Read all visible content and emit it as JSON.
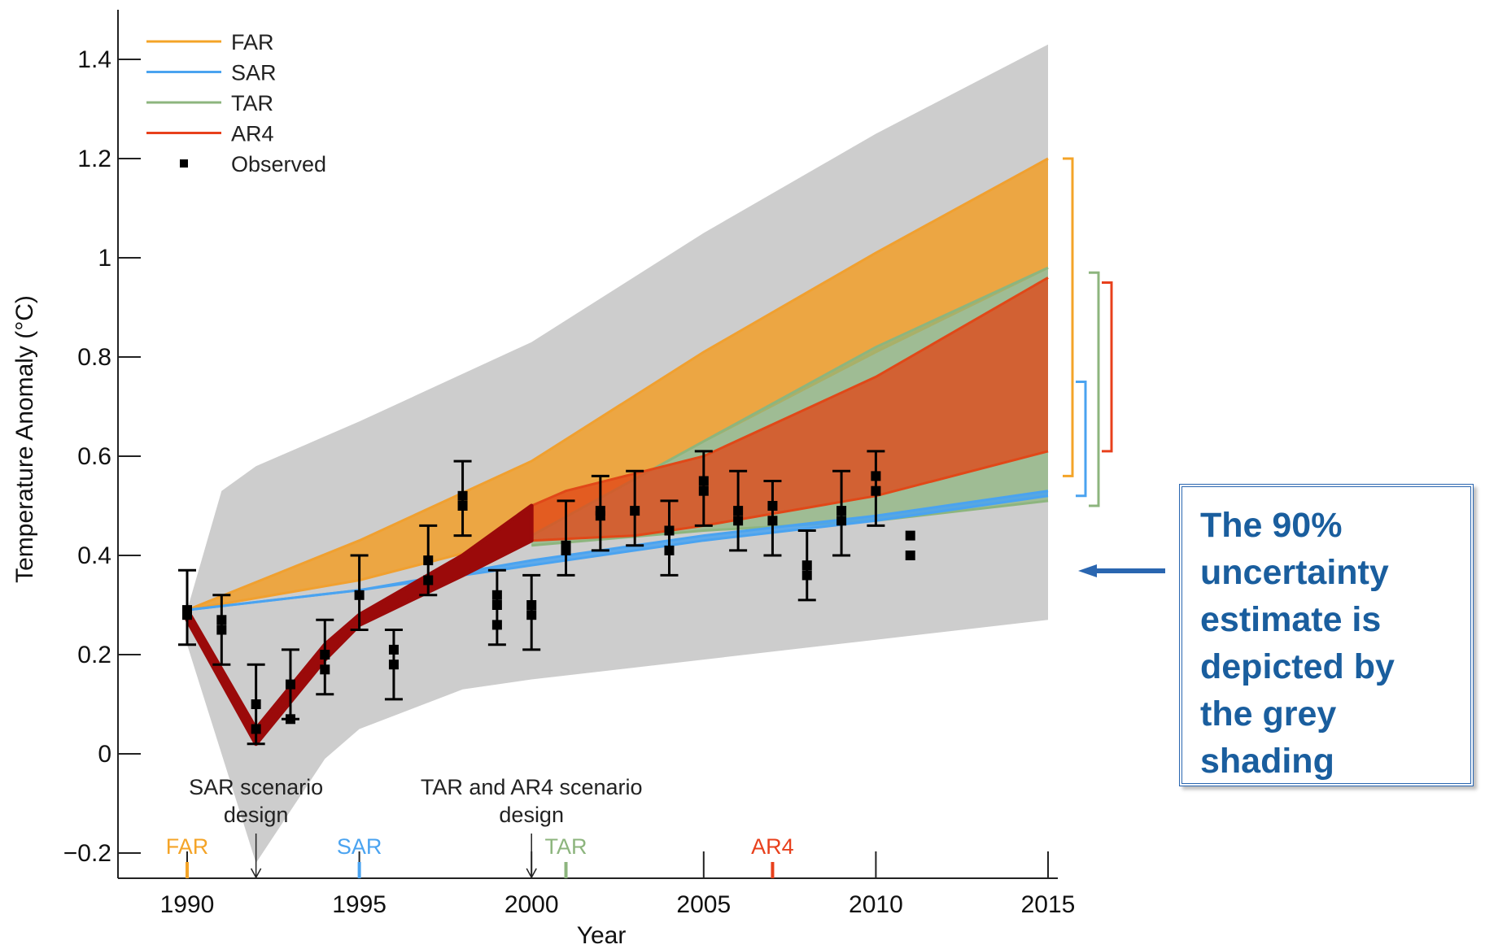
{
  "chart_data": {
    "type": "area",
    "xlabel": "Year",
    "ylabel": "Temperature Anomaly (°C)",
    "xlim": [
      1987.5,
      2015
    ],
    "ylim": [
      -0.25,
      1.5
    ],
    "x_ticks": [
      1990,
      1995,
      2000,
      2005,
      2010,
      2015
    ],
    "y_ticks": [
      -0.2,
      0,
      0.2,
      0.4,
      0.6,
      0.8,
      1,
      1.2,
      1.4
    ],
    "y_tick_labels": [
      "−0.2",
      "0",
      "0.2",
      "0.4",
      "0.6",
      "0.8",
      "1",
      "1.2",
      "1.4"
    ],
    "grid": false,
    "legend_position": "top-left",
    "legend": [
      {
        "name": "FAR",
        "color": "#f4a428",
        "kind": "line"
      },
      {
        "name": "SAR",
        "color": "#4aa3f0",
        "kind": "line"
      },
      {
        "name": "TAR",
        "color": "#8db57e",
        "kind": "line"
      },
      {
        "name": "AR4",
        "color": "#e8401c",
        "kind": "line"
      },
      {
        "name": "Observed",
        "color": "#000000",
        "kind": "marker"
      }
    ],
    "uncertainty_band": {
      "color": "#cdcdcd",
      "upper": [
        [
          1990,
          0.29
        ],
        [
          1991,
          0.53
        ],
        [
          1992,
          0.58
        ],
        [
          1995,
          0.67
        ],
        [
          2000,
          0.83
        ],
        [
          2005,
          1.05
        ],
        [
          2010,
          1.25
        ],
        [
          2015,
          1.43
        ]
      ],
      "lower": [
        [
          1990,
          0.22
        ],
        [
          1992,
          -0.22
        ],
        [
          1994,
          -0.01
        ],
        [
          1995,
          0.05
        ],
        [
          1998,
          0.13
        ],
        [
          2000,
          0.15
        ],
        [
          2005,
          0.19
        ],
        [
          2010,
          0.23
        ],
        [
          2015,
          0.27
        ]
      ]
    },
    "ranges": [
      {
        "name": "FAR",
        "color": "#f0a030",
        "upper": [
          [
            1990,
            0.29
          ],
          [
            1995,
            0.43
          ],
          [
            2000,
            0.59
          ],
          [
            2005,
            0.81
          ],
          [
            2010,
            1.01
          ],
          [
            2015,
            1.2
          ]
        ],
        "lower": [
          [
            1990,
            0.29
          ],
          [
            1995,
            0.35
          ],
          [
            2000,
            0.44
          ],
          [
            2005,
            0.63
          ],
          [
            2010,
            0.81
          ],
          [
            2015,
            0.98
          ]
        ]
      },
      {
        "name": "TAR",
        "color": "#8db57e",
        "upper": [
          [
            2000,
            0.44
          ],
          [
            2005,
            0.63
          ],
          [
            2010,
            0.82
          ],
          [
            2015,
            0.98
          ]
        ],
        "lower": [
          [
            2000,
            0.42
          ],
          [
            2005,
            0.45
          ],
          [
            2010,
            0.47
          ],
          [
            2015,
            0.51
          ]
        ]
      },
      {
        "name": "SAR",
        "color": "#4aa3f0",
        "upper": [
          [
            1990,
            0.29
          ],
          [
            1995,
            0.33
          ],
          [
            2000,
            0.39
          ],
          [
            2005,
            0.44
          ],
          [
            2010,
            0.48
          ],
          [
            2015,
            0.53
          ]
        ],
        "lower": [
          [
            1990,
            0.29
          ],
          [
            1995,
            0.33
          ],
          [
            2000,
            0.38
          ],
          [
            2005,
            0.43
          ],
          [
            2010,
            0.47
          ],
          [
            2015,
            0.52
          ]
        ]
      },
      {
        "name": "AR4",
        "color": "#e04818",
        "upper": [
          [
            2000,
            0.5
          ],
          [
            2001,
            0.53
          ],
          [
            2005,
            0.6
          ],
          [
            2010,
            0.76
          ],
          [
            2015,
            0.96
          ]
        ],
        "lower": [
          [
            2000,
            0.43
          ],
          [
            2003,
            0.44
          ],
          [
            2005,
            0.46
          ],
          [
            2010,
            0.52
          ],
          [
            2015,
            0.61
          ]
        ]
      }
    ],
    "ar4_historical": {
      "color": "#9b0a0a",
      "upper": [
        [
          1990,
          0.29
        ],
        [
          1992,
          0.05
        ],
        [
          1994,
          0.22
        ],
        [
          1995,
          0.28
        ],
        [
          1998,
          0.4
        ],
        [
          2000,
          0.5
        ]
      ],
      "lower": [
        [
          1990,
          0.27
        ],
        [
          1992,
          0.02
        ],
        [
          1994,
          0.19
        ],
        [
          1995,
          0.26
        ],
        [
          1998,
          0.36
        ],
        [
          2000,
          0.43
        ]
      ]
    },
    "observed": [
      {
        "x": 1990,
        "values": [
          0.29,
          0.28
        ],
        "low": 0.22,
        "high": 0.37
      },
      {
        "x": 1991,
        "values": [
          0.27,
          0.25
        ],
        "low": 0.18,
        "high": 0.32
      },
      {
        "x": 1992,
        "values": [
          0.1,
          0.05
        ],
        "low": 0.02,
        "high": 0.18
      },
      {
        "x": 1993,
        "values": [
          0.14,
          0.07
        ],
        "low": 0.07,
        "high": 0.21
      },
      {
        "x": 1994,
        "values": [
          0.2,
          0.17
        ],
        "low": 0.12,
        "high": 0.27
      },
      {
        "x": 1995,
        "values": [
          0.32
        ],
        "low": 0.25,
        "high": 0.4
      },
      {
        "x": 1996,
        "values": [
          0.21,
          0.18
        ],
        "low": 0.11,
        "high": 0.25
      },
      {
        "x": 1997,
        "values": [
          0.39,
          0.35
        ],
        "low": 0.32,
        "high": 0.46
      },
      {
        "x": 1998,
        "values": [
          0.52,
          0.5
        ],
        "low": 0.44,
        "high": 0.59
      },
      {
        "x": 1999,
        "values": [
          0.32,
          0.3,
          0.26
        ],
        "low": 0.22,
        "high": 0.37
      },
      {
        "x": 2000,
        "values": [
          0.3,
          0.28
        ],
        "low": 0.21,
        "high": 0.36
      },
      {
        "x": 2001,
        "values": [
          0.42,
          0.41
        ],
        "low": 0.36,
        "high": 0.51
      },
      {
        "x": 2002,
        "values": [
          0.49,
          0.48
        ],
        "low": 0.41,
        "high": 0.56
      },
      {
        "x": 2003,
        "values": [
          0.49
        ],
        "low": 0.42,
        "high": 0.57
      },
      {
        "x": 2004,
        "values": [
          0.45,
          0.41
        ],
        "low": 0.36,
        "high": 0.51
      },
      {
        "x": 2005,
        "values": [
          0.55,
          0.53
        ],
        "low": 0.46,
        "high": 0.61
      },
      {
        "x": 2006,
        "values": [
          0.49,
          0.47
        ],
        "low": 0.41,
        "high": 0.57
      },
      {
        "x": 2007,
        "values": [
          0.5,
          0.47
        ],
        "low": 0.4,
        "high": 0.55
      },
      {
        "x": 2008,
        "values": [
          0.38,
          0.36
        ],
        "low": 0.31,
        "high": 0.45
      },
      {
        "x": 2009,
        "values": [
          0.49,
          0.47
        ],
        "low": 0.4,
        "high": 0.57
      },
      {
        "x": 2010,
        "values": [
          0.56,
          0.53
        ],
        "low": 0.46,
        "high": 0.61
      },
      {
        "x": 2011,
        "values": [
          0.44,
          0.4
        ]
      }
    ],
    "range_brackets": [
      {
        "name": "FAR",
        "color": "#f4a428",
        "y_range": [
          0.56,
          1.2
        ]
      },
      {
        "name": "SAR",
        "color": "#4aa3f0",
        "y_range": [
          0.52,
          0.75
        ]
      },
      {
        "name": "TAR",
        "color": "#8db57e",
        "y_range": [
          0.5,
          0.97
        ]
      },
      {
        "name": "AR4",
        "color": "#e8401c",
        "y_range": [
          0.61,
          0.95
        ]
      }
    ],
    "report_markers": [
      {
        "label": "FAR",
        "year": 1990,
        "color": "#f4a428"
      },
      {
        "label": "SAR",
        "year": 1995,
        "color": "#4aa3f0"
      },
      {
        "label": "TAR",
        "year": 2001,
        "color": "#8db57e"
      },
      {
        "label": "AR4",
        "year": 2007,
        "color": "#e8401c"
      }
    ],
    "scenario_annotations": [
      {
        "year": 1992,
        "lines": [
          "SAR scenario",
          "design"
        ]
      },
      {
        "year": 2000,
        "lines": [
          "TAR and AR4 scenario",
          "design"
        ]
      }
    ]
  },
  "note": {
    "lines": [
      "The 90%",
      "uncertainty",
      "estimate is",
      "depicted by",
      "the grey",
      "shading"
    ],
    "arrow_color": "#2a66b0"
  }
}
